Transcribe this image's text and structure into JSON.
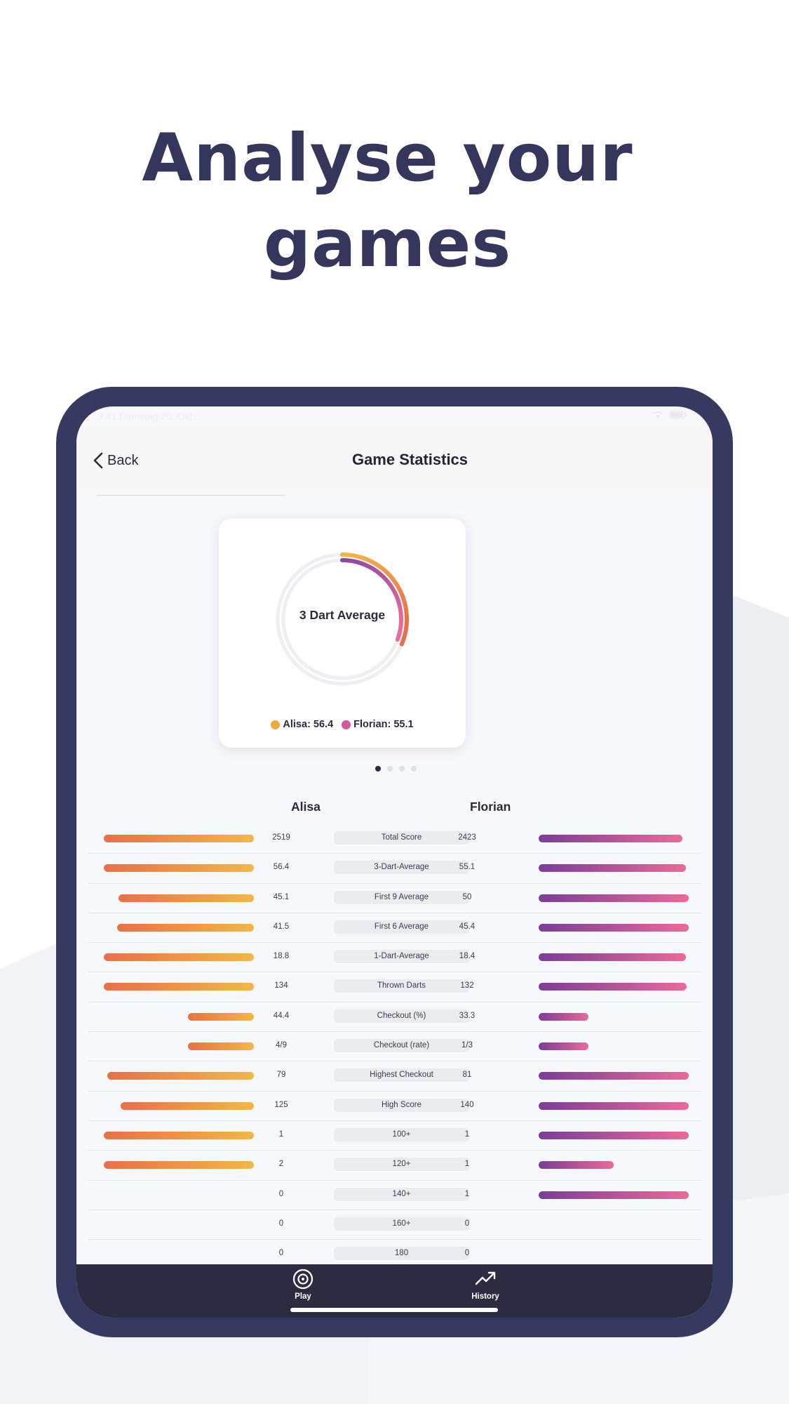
{
  "promo": {
    "headline_line1": "Analyse your",
    "headline_line2": "games"
  },
  "status_bar": {
    "time": "9:41  Dienstag 20. Okt.",
    "icons": "wifi-icon battery-icon"
  },
  "nav": {
    "back_label": "Back",
    "title": "Game Statistics"
  },
  "chart_card": {
    "center_label": "3 Dart Average",
    "legend": [
      {
        "text": "Alisa: 56.4",
        "color": "#f0a93b"
      },
      {
        "text": "Florian: 55.1",
        "color": "#d6599a"
      }
    ]
  },
  "chart_data": {
    "type": "radial-bar",
    "title": "3 Dart Average",
    "series": [
      {
        "name": "Alisa",
        "value": 56.4,
        "color": "#f0a93b"
      },
      {
        "name": "Florian",
        "value": 55.1,
        "color": "#d6599a"
      }
    ]
  },
  "pager": {
    "count": 4,
    "active": 0
  },
  "players": {
    "a": "Alisa",
    "b": "Florian"
  },
  "colors": {
    "navy": "#34375b",
    "device": "#373a60",
    "tabbar": "#2b2c42",
    "alisa_gradient": [
      "#e87048",
      "#f2b747"
    ],
    "florian_gradient": [
      "#7c3d98",
      "#e96a99"
    ]
  },
  "stats": [
    {
      "label": "Total Score",
      "a": "2519",
      "b": "2423",
      "fa": 1.0,
      "fb": 0.96
    },
    {
      "label": "3-Dart-Average",
      "a": "56.4",
      "b": "55.1",
      "fa": 1.0,
      "fb": 0.98
    },
    {
      "label": "First 9 Average",
      "a": "45.1",
      "b": "50",
      "fa": 0.9,
      "fb": 1.0
    },
    {
      "label": "First 6 Average",
      "a": "41.5",
      "b": "45.4",
      "fa": 0.91,
      "fb": 1.0
    },
    {
      "label": "1-Dart-Average",
      "a": "18.8",
      "b": "18.4",
      "fa": 1.0,
      "fb": 0.98
    },
    {
      "label": "Thrown Darts",
      "a": "134",
      "b": "132",
      "fa": 1.0,
      "fb": 0.985
    },
    {
      "label": "Checkout (%)",
      "a": "44.4",
      "b": "33.3",
      "fa": 0.44,
      "fb": 0.33
    },
    {
      "label": "Checkout (rate)",
      "a": "4/9",
      "b": "1/3",
      "fa": 0.44,
      "fb": 0.33
    },
    {
      "label": "Highest Checkout",
      "a": "79",
      "b": "81",
      "fa": 0.975,
      "fb": 1.0
    },
    {
      "label": "High Score",
      "a": "125",
      "b": "140",
      "fa": 0.89,
      "fb": 1.0
    },
    {
      "label": "100+",
      "a": "1",
      "b": "1",
      "fa": 1.0,
      "fb": 1.0
    },
    {
      "label": "120+",
      "a": "2",
      "b": "1",
      "fa": 1.0,
      "fb": 0.5
    },
    {
      "label": "140+",
      "a": "0",
      "b": "1",
      "fa": 0,
      "fb": 1.0
    },
    {
      "label": "160+",
      "a": "0",
      "b": "0",
      "fa": 0,
      "fb": 0
    },
    {
      "label": "180",
      "a": "0",
      "b": "0",
      "fa": 0,
      "fb": 0
    }
  ],
  "tabs": [
    {
      "label": "Play",
      "icon": "target-icon"
    },
    {
      "label": "History",
      "icon": "trend-icon"
    }
  ]
}
